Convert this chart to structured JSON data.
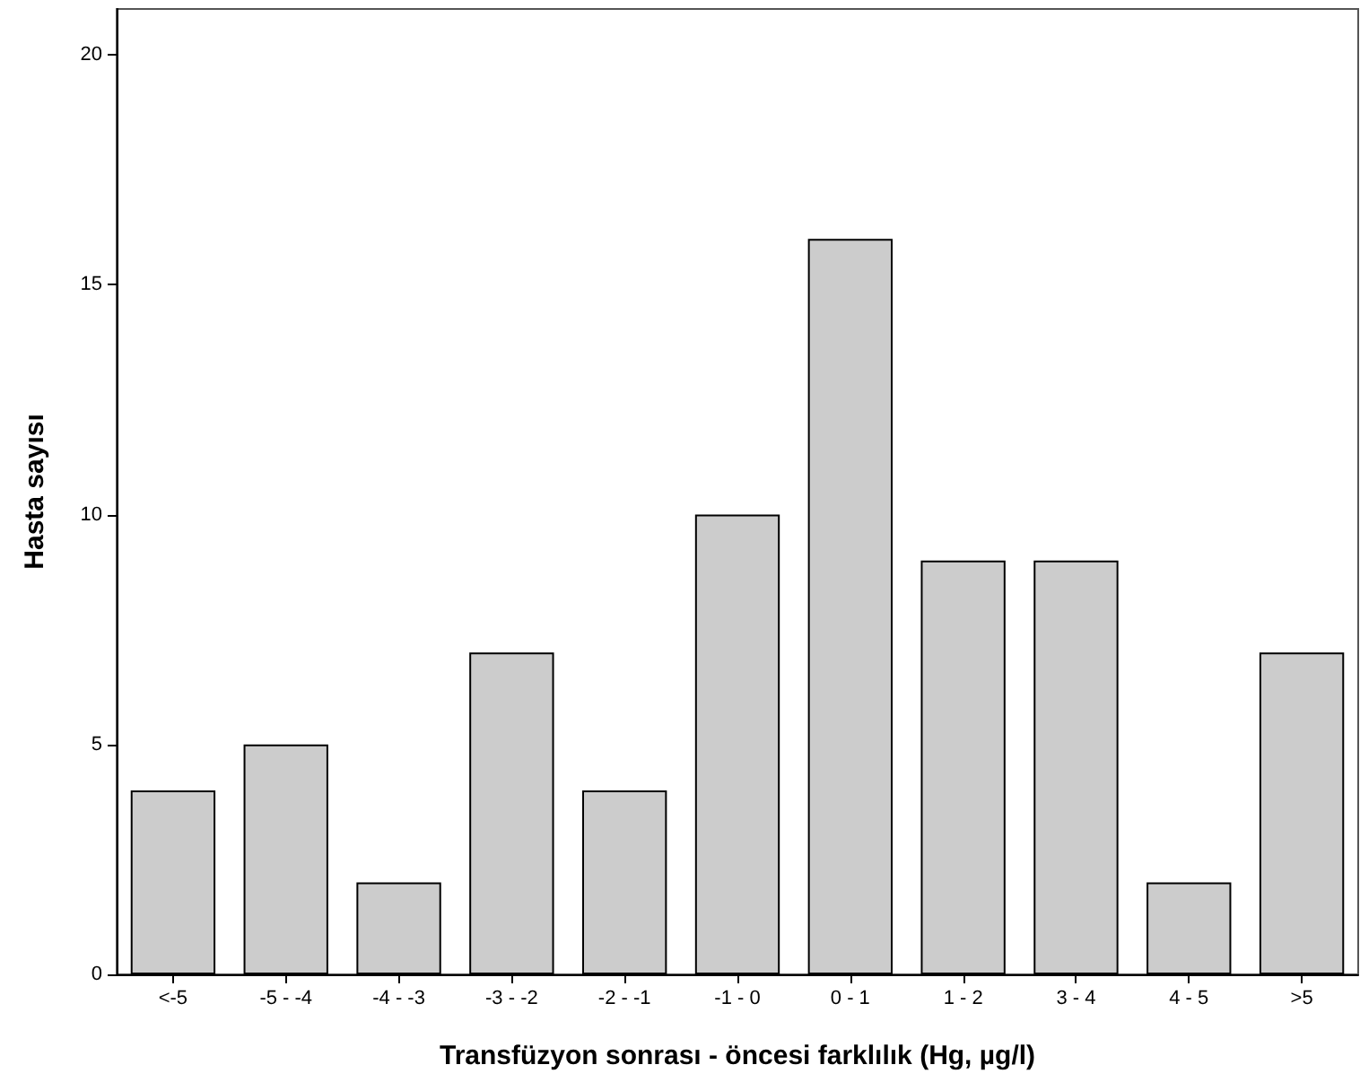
{
  "chart_data": {
    "type": "bar",
    "xlabel": "Transfüzyon sonrası - öncesi farklılık (Hg, µg/l)",
    "ylabel": "Hasta sayısı",
    "categories": [
      "<-5",
      "-5 - -4",
      "-4 - -3",
      "-3 - -2",
      "-2 - -1",
      "-1 - 0",
      "0 - 1",
      "1 - 2",
      "3 - 4",
      "4 - 5",
      ">5"
    ],
    "values": [
      4,
      5,
      2,
      7,
      4,
      10,
      16,
      9,
      9,
      2,
      7
    ],
    "color": "#cccccc",
    "ylim": [
      0,
      21
    ],
    "yticks": [
      0,
      5,
      10,
      15,
      20
    ],
    "grid": false
  }
}
